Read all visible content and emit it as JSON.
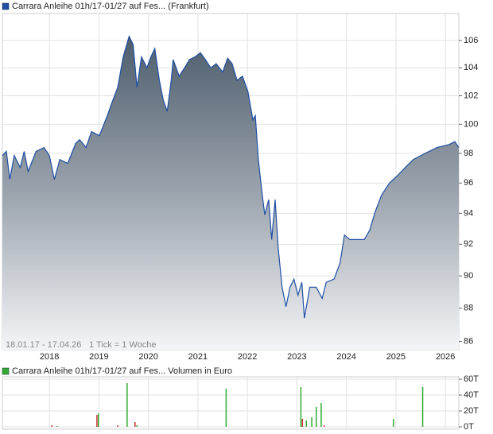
{
  "chart_data": [
    {
      "type": "area",
      "title": "Carrara Anleihe 01h/17-01/27 auf Fes... (Frankfurt)",
      "annotations": [
        "18.01.17 - 17.04.26",
        "1 Tick = 1 Woche"
      ],
      "color": "#1f4ea3",
      "log": true,
      "grid": true,
      "xlim": [
        2017.05,
        2026.27
      ],
      "xticks": [
        2018,
        2019,
        2020,
        2021,
        2022,
        2023,
        2024,
        2025,
        2026
      ],
      "ylim": [
        85.5,
        108
      ],
      "yticks": [
        86,
        88,
        90,
        92,
        94,
        96,
        98,
        100,
        102,
        104,
        106
      ],
      "x": [
        2017.05,
        2017.13,
        2017.2,
        2017.29,
        2017.41,
        2017.49,
        2017.57,
        2017.73,
        2017.89,
        2018.0,
        2018.1,
        2018.21,
        2018.37,
        2018.53,
        2018.61,
        2018.74,
        2018.85,
        2019.01,
        2019.17,
        2019.25,
        2019.38,
        2019.49,
        2019.61,
        2019.69,
        2019.77,
        2019.86,
        2019.97,
        2020.05,
        2020.13,
        2020.22,
        2020.3,
        2020.38,
        2020.46,
        2020.5,
        2020.62,
        2020.73,
        2020.83,
        2020.94,
        2021.05,
        2021.15,
        2021.26,
        2021.37,
        2021.5,
        2021.6,
        2021.69,
        2021.79,
        2021.9,
        2022.01,
        2022.11,
        2022.16,
        2022.22,
        2022.3,
        2022.35,
        2022.43,
        2022.49,
        2022.56,
        2022.62,
        2022.7,
        2022.78,
        2022.86,
        2022.94,
        2023.02,
        2023.1,
        2023.15,
        2023.26,
        2023.39,
        2023.51,
        2023.59,
        2023.75,
        2023.87,
        2023.96,
        2024.07,
        2024.23,
        2024.36,
        2024.47,
        2024.58,
        2024.71,
        2024.87,
        2025.03,
        2025.19,
        2025.35,
        2025.59,
        2025.83,
        2026.07,
        2026.19,
        2026.27
      ],
      "values": [
        97.85,
        98.13,
        96.25,
        97.85,
        97.05,
        98.13,
        96.78,
        98.13,
        98.4,
        97.85,
        96.25,
        97.58,
        97.32,
        98.67,
        98.94,
        98.4,
        99.49,
        99.21,
        100.6,
        101.4,
        102.6,
        104.8,
        106.3,
        105.7,
        102.6,
        104.8,
        104.0,
        104.8,
        105.4,
        103.1,
        101.7,
        100.9,
        103.1,
        104.6,
        103.4,
        104.0,
        104.6,
        104.8,
        105.1,
        104.6,
        104.0,
        104.3,
        103.7,
        104.7,
        104.3,
        103.1,
        103.4,
        102.3,
        100.3,
        100.6,
        97.58,
        95.2,
        93.9,
        94.9,
        92.3,
        94.9,
        91.8,
        89.3,
        88.1,
        89.3,
        89.8,
        88.8,
        89.6,
        87.4,
        89.3,
        89.3,
        88.6,
        89.6,
        89.8,
        90.8,
        92.6,
        92.3,
        92.3,
        92.3,
        92.9,
        94.1,
        95.2,
        96.0,
        96.5,
        97.05,
        97.58,
        98.0,
        98.4,
        98.6,
        98.8,
        98.4
      ]
    },
    {
      "type": "volume",
      "title": "Carrara Anleihe 01h/17-01/27 auf Fes... Volumen in Euro",
      "grid": true,
      "xlim": [
        2017.05,
        2026.27
      ],
      "xticks": [
        2018,
        2019,
        2020,
        2021,
        2022,
        2023,
        2024,
        2025,
        2026
      ],
      "ylim": [
        -3000,
        63000
      ],
      "yticks": [
        {
          "value": 0,
          "label": "0T"
        },
        {
          "value": 20000,
          "label": "20T"
        },
        {
          "value": 40000,
          "label": "40T"
        },
        {
          "value": 60000,
          "label": "60T"
        }
      ],
      "x": [
        2018.05,
        2018.16,
        2018.96,
        2018.99,
        2019.38,
        2019.57,
        2019.73,
        2019.77,
        2021.57,
        2023.08,
        2023.11,
        2023.19,
        2023.3,
        2023.39,
        2023.49,
        2023.55,
        2024.95,
        2025.54
      ],
      "values": [
        2000,
        1000,
        15000,
        17000,
        2000,
        55000,
        6000,
        2000,
        48000,
        50000,
        10000,
        8000,
        12000,
        25000,
        30000,
        2000,
        10000,
        50000
      ],
      "colors": [
        "#cc3333",
        "#33aa33",
        "#cc3333",
        "#33aa33",
        "#cc3333",
        "#33aa33",
        "#cc3333",
        "#33aa33",
        "#33aa33",
        "#33aa33",
        "#cc3333",
        "#33aa33",
        "#33aa33",
        "#33aa33",
        "#33aa33",
        "#cc3333",
        "#33aa33",
        "#33aa33"
      ]
    }
  ]
}
